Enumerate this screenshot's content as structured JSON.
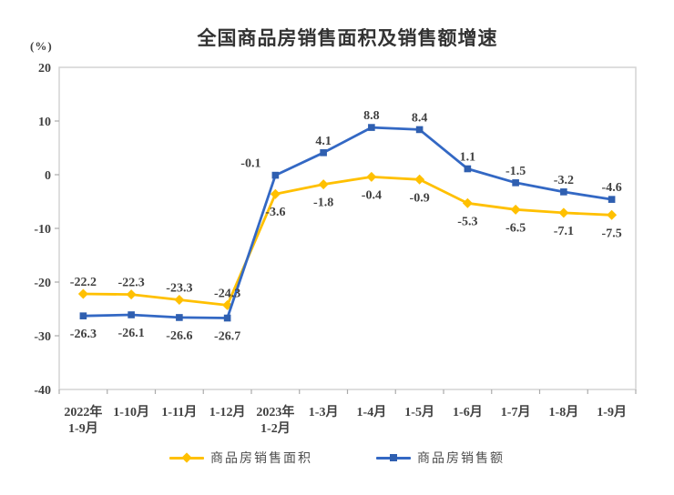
{
  "title": "全国商品房销售面积及销售额增速",
  "unit_label": "(%)",
  "colors": {
    "area_series": "#FFC000",
    "sales_series": "#3368C4",
    "sales_marker": "#2F5FB0",
    "plot_border": "#D4D4D4",
    "tick": "#ABABAB",
    "label_text": "#404040",
    "title_text": "#333333",
    "legend_text": "#4D4D4D"
  },
  "chart_data": {
    "type": "line",
    "title": "全国商品房销售面积及销售额增速",
    "unit": "(%)",
    "xlabel": "",
    "ylabel": "(%)",
    "categories": [
      "2022年\n1-9月",
      "1-10月",
      "1-11月",
      "1-12月",
      "2023年\n1-2月",
      "1-3月",
      "1-4月",
      "1-5月",
      "1-6月",
      "1-7月",
      "1-8月",
      "1-9月"
    ],
    "ylim": [
      -40,
      20
    ],
    "yticks": [
      20,
      10,
      0,
      -10,
      -20,
      -30,
      -40
    ],
    "grid": false,
    "legend_position": "bottom",
    "series": [
      {
        "name": "商品房销售面积",
        "color": "#FFC000",
        "marker": "diamond",
        "values": [
          -22.2,
          -22.3,
          -23.3,
          -24.3,
          -3.6,
          -1.8,
          -0.4,
          -0.9,
          -5.3,
          -6.5,
          -7.1,
          -7.5
        ],
        "label_positions": [
          "above",
          "above",
          "above",
          "above",
          "below",
          "below",
          "below",
          "below",
          "below",
          "below",
          "below",
          "below"
        ]
      },
      {
        "name": "商品房销售额",
        "color": "#3368C4",
        "marker": "square",
        "values": [
          -26.3,
          -26.1,
          -26.6,
          -26.7,
          -0.1,
          4.1,
          8.8,
          8.4,
          1.1,
          -1.5,
          -3.2,
          -4.6
        ],
        "label_positions": [
          "below",
          "below",
          "below",
          "below",
          "above-left",
          "above",
          "above",
          "above",
          "above",
          "above",
          "above",
          "above"
        ]
      }
    ]
  }
}
